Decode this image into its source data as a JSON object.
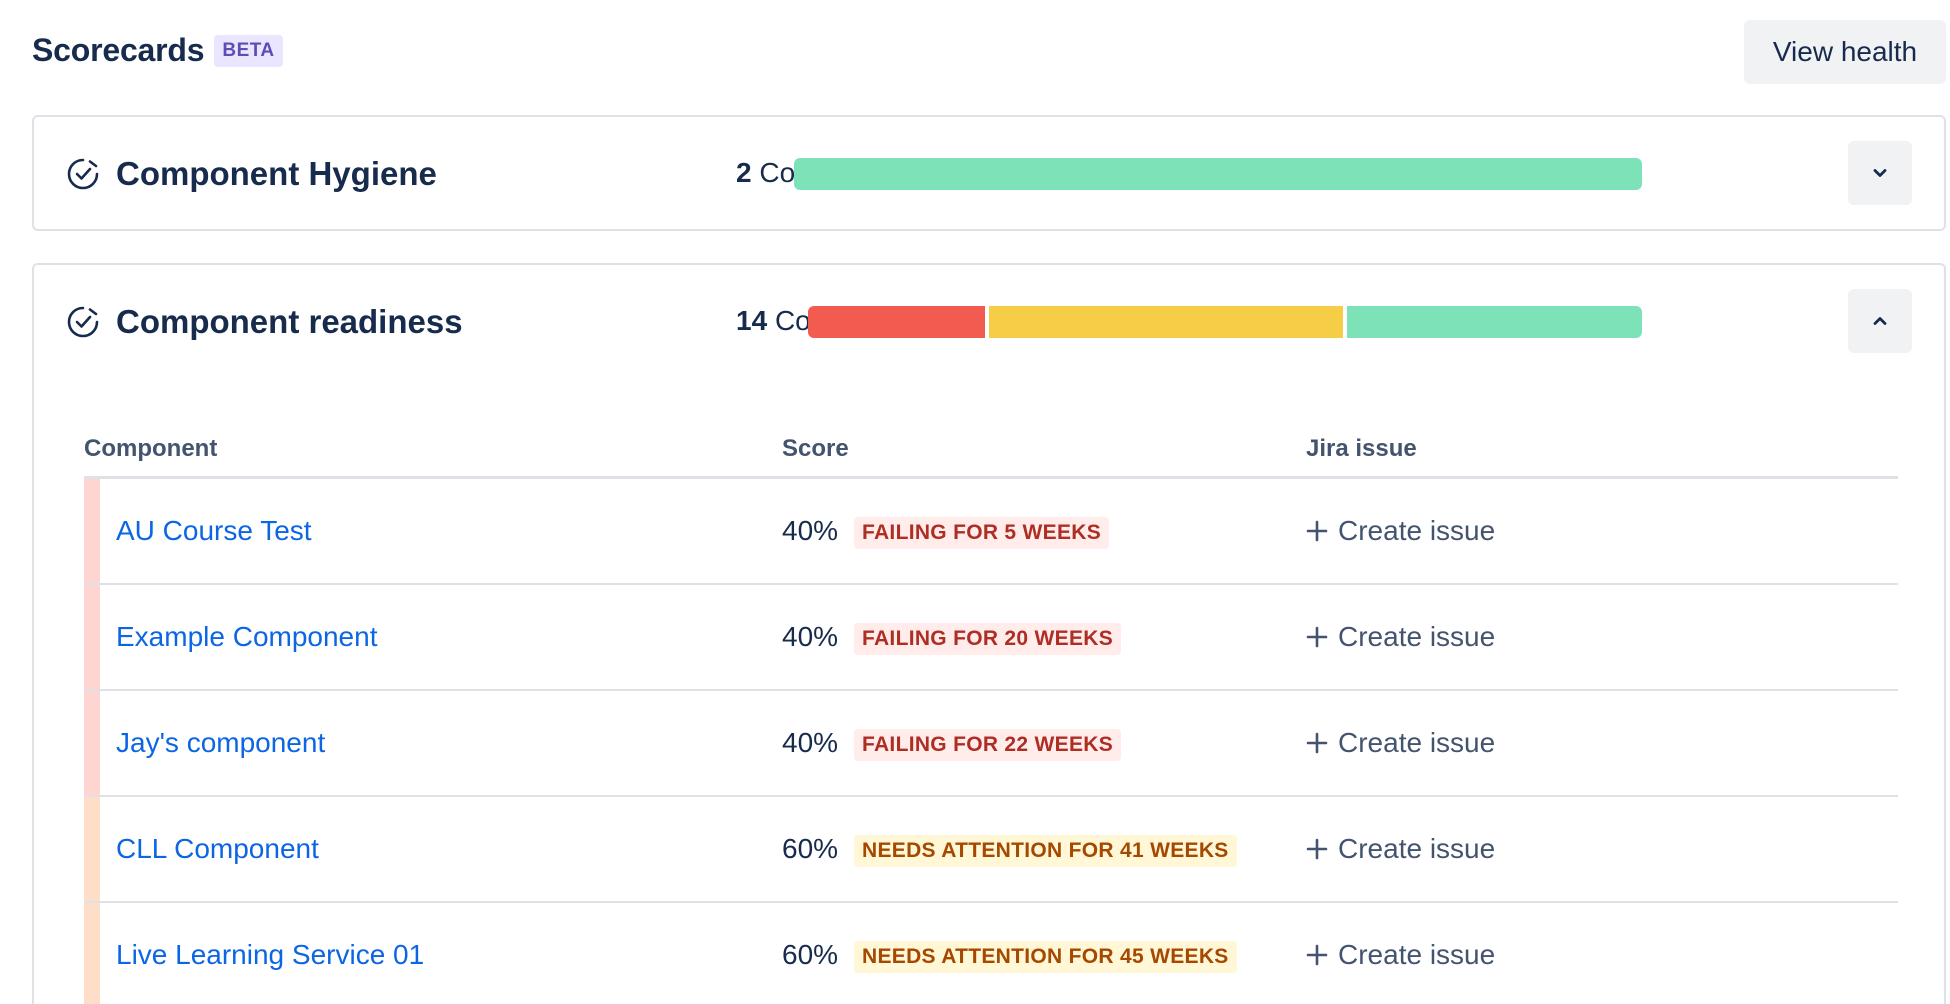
{
  "header": {
    "title": "Scorecards",
    "badge": "BETA",
    "view_health_label": "View health"
  },
  "colors": {
    "failing": "#f15b50",
    "attention": "#f5cd47",
    "passing": "#7ee2b8",
    "link": "#0c66e4"
  },
  "scorecards": [
    {
      "name": "Component Hygiene",
      "count": "2",
      "count_label": "Components",
      "icon": "check-circle-icon",
      "toggle_icon": "chevron-down-icon",
      "expanded": false,
      "bar": [
        {
          "status": "passing",
          "share": 1.0
        }
      ]
    },
    {
      "name": "Component readiness",
      "count": "14",
      "count_label": "Components",
      "icon": "check-circle-icon",
      "toggle_icon": "chevron-up-icon",
      "expanded": true,
      "bar": [
        {
          "status": "failing",
          "share": 0.214
        },
        {
          "status": "attention",
          "share": 0.429
        },
        {
          "status": "passing",
          "share": 0.357
        }
      ]
    }
  ],
  "table": {
    "columns": {
      "component": "Component",
      "score": "Score",
      "jira": "Jira issue"
    },
    "rows": [
      {
        "name": "AU Course Test",
        "score": "40%",
        "status": "failing",
        "badge": "FAILING FOR 5 WEEKS",
        "action": "Create issue"
      },
      {
        "name": "Example Component",
        "score": "40%",
        "status": "failing",
        "badge": "FAILING FOR 20 WEEKS",
        "action": "Create issue"
      },
      {
        "name": "Jay's component",
        "score": "40%",
        "status": "failing",
        "badge": "FAILING FOR 22 WEEKS",
        "action": "Create issue"
      },
      {
        "name": "CLL Component",
        "score": "60%",
        "status": "attention",
        "badge": "NEEDS ATTENTION FOR 41 WEEKS",
        "action": "Create issue"
      },
      {
        "name": "Live Learning Service 01",
        "score": "60%",
        "status": "attention",
        "badge": "NEEDS ATTENTION FOR 45 WEEKS",
        "action": "Create issue"
      }
    ]
  }
}
